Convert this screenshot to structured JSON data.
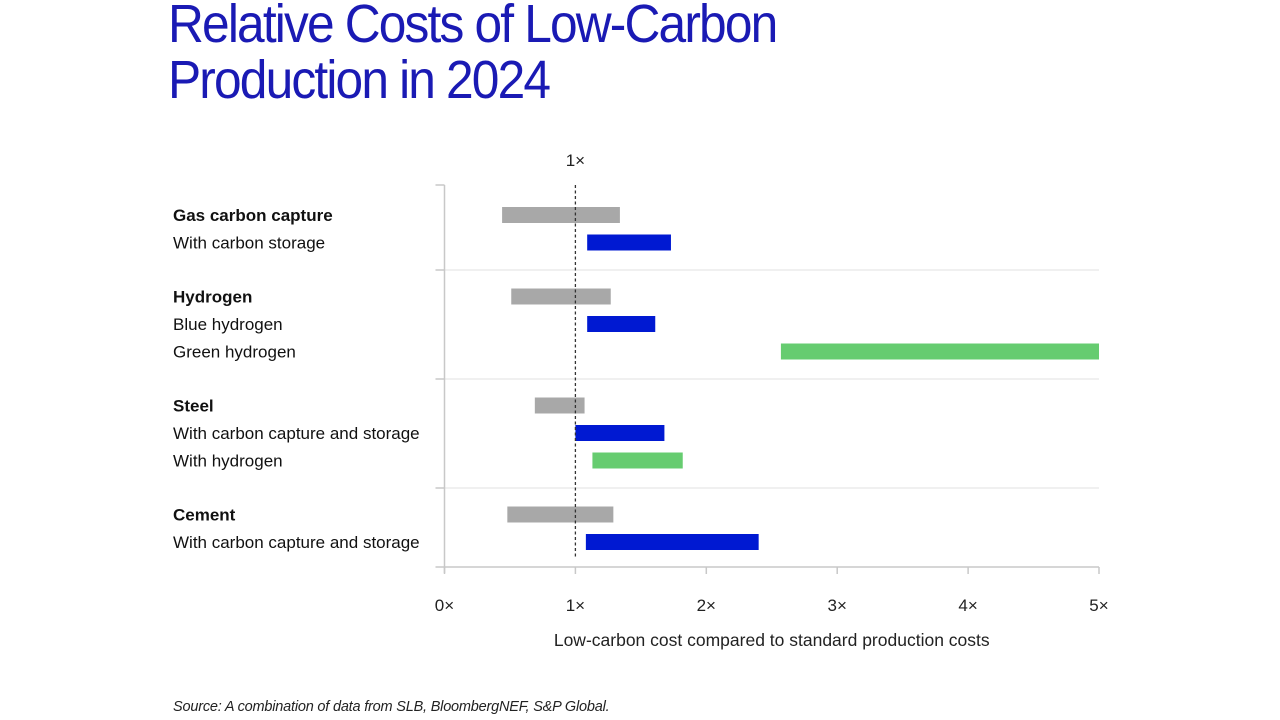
{
  "chart_data": {
    "type": "bar",
    "subtype": "floating-range-bar",
    "title": "Relative Costs of Low-Carbon Production in 2024",
    "title_lines": [
      "Relative Costs of Low-Carbon",
      "Production in 2024"
    ],
    "xlabel": "Low-carbon cost compared to standard production costs",
    "ylabel": "",
    "xlim": [
      0,
      5
    ],
    "x_ticks": [
      0,
      1,
      2,
      3,
      4,
      5
    ],
    "x_tick_labels": [
      "0×",
      "1×",
      "2×",
      "3×",
      "4×",
      "5×"
    ],
    "reference_line": {
      "value": 1,
      "label": "1×",
      "style": "dashed"
    },
    "grid": false,
    "colors": {
      "title": "#1a1ab4",
      "standard": "#a8a8a8",
      "carbon_capture": "#0019d2",
      "hydrogen": "#66cc70",
      "axis": "#c8c8c8",
      "separator": "#e6e6e6"
    },
    "groups": [
      {
        "name": "Gas carbon capture",
        "rows": [
          {
            "label": "Gas carbon capture",
            "kind": "standard",
            "min": 0.44,
            "max": 1.34
          },
          {
            "label": "With carbon storage",
            "kind": "carbon_capture",
            "min": 1.09,
            "max": 1.73
          }
        ]
      },
      {
        "name": "Hydrogen",
        "rows": [
          {
            "label": "Hydrogen",
            "kind": "standard",
            "min": 0.51,
            "max": 1.27
          },
          {
            "label": "Blue hydrogen",
            "kind": "carbon_capture",
            "min": 1.09,
            "max": 1.61
          },
          {
            "label": "Green hydrogen",
            "kind": "hydrogen",
            "min": 2.57,
            "max": 5.0
          }
        ]
      },
      {
        "name": "Steel",
        "rows": [
          {
            "label": "Steel",
            "kind": "standard",
            "min": 0.69,
            "max": 1.07
          },
          {
            "label": "With carbon capture and storage",
            "kind": "carbon_capture",
            "min": 1.0,
            "max": 1.68
          },
          {
            "label": "With hydrogen",
            "kind": "hydrogen",
            "min": 1.13,
            "max": 1.82
          }
        ]
      },
      {
        "name": "Cement",
        "rows": [
          {
            "label": "Cement",
            "kind": "standard",
            "min": 0.48,
            "max": 1.29
          },
          {
            "label": "With carbon capture and storage",
            "kind": "carbon_capture",
            "min": 1.08,
            "max": 2.4
          }
        ]
      }
    ],
    "source": "Source: A combination of data from SLB, BloombergNEF, S&P Global."
  }
}
